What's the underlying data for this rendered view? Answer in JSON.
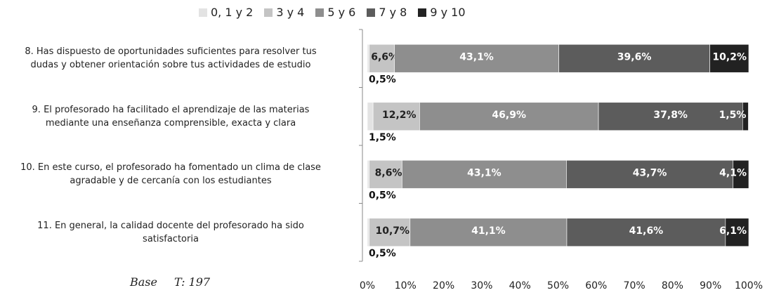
{
  "chart_data": {
    "type": "stacked_bar_horizontal",
    "categories": [
      "8.      Has dispuesto de oportunidades suficientes para resolver tus\ndudas y obtener orientación sobre tus actividades de estudio",
      "9.      El profesorado ha facilitado el aprendizaje de las materias\nmediante una enseñanza comprensible, exacta y clara",
      "10.  En este curso, el profesorado ha fomentado un clima de clase\nagradable y  de cercanía con los estudiantes",
      "11.  En general, la calidad docente del profesorado ha sido\nsatisfactoria"
    ],
    "series": [
      {
        "name": "0, 1 y 2",
        "color": "#e3e3e3",
        "values": [
          0.5,
          1.5,
          0.5,
          0.5
        ],
        "value_labels": [
          "0,5%",
          "1,5%",
          "0,5%",
          "0,5%"
        ]
      },
      {
        "name": "3 y 4",
        "color": "#c4c4c4",
        "values": [
          6.6,
          12.2,
          8.6,
          10.7
        ],
        "value_labels": [
          "6,6%",
          "12,2%",
          "8,6%",
          "10,7%"
        ]
      },
      {
        "name": "5 y 6",
        "color": "#8e8e8e",
        "values": [
          43.1,
          46.9,
          43.1,
          41.1
        ],
        "value_labels": [
          "43,1%",
          "46,9%",
          "43,1%",
          "41,1%"
        ]
      },
      {
        "name": "7 y 8",
        "color": "#5c5c5c",
        "values": [
          39.6,
          37.8,
          43.7,
          41.6
        ],
        "value_labels": [
          "39,6%",
          "37,8%",
          "43,7%",
          "41,6%"
        ]
      },
      {
        "name": "9 y 10",
        "color": "#222222",
        "values": [
          10.2,
          1.5,
          4.1,
          6.1
        ],
        "value_labels": [
          "10,2%",
          "1,5%",
          "4,1%",
          "6,1%"
        ]
      }
    ],
    "xlim": [
      0,
      100
    ],
    "xticks": [
      {
        "value": 0,
        "label": "0%"
      },
      {
        "value": 10,
        "label": "10%"
      },
      {
        "value": 20,
        "label": "20%"
      },
      {
        "value": 30,
        "label": "30%"
      },
      {
        "value": 40,
        "label": "40%"
      },
      {
        "value": 50,
        "label": "50%"
      },
      {
        "value": 60,
        "label": "60%"
      },
      {
        "value": 70,
        "label": "70%"
      },
      {
        "value": 80,
        "label": "80%"
      },
      {
        "value": 90,
        "label": "90%"
      },
      {
        "value": 100,
        "label": "100%"
      }
    ],
    "legend": "top",
    "base_label": "Base",
    "base_value": "T: 197"
  }
}
